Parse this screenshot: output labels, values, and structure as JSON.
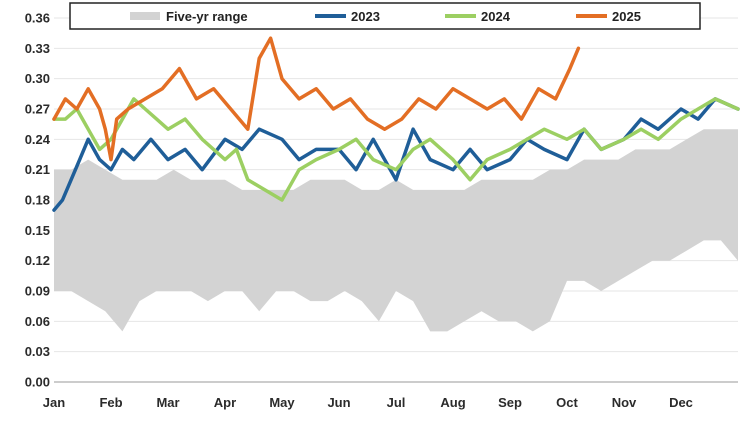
{
  "chart_data": {
    "type": "line",
    "title": "",
    "xlabel": "",
    "ylabel": "",
    "ylim": [
      0,
      0.36
    ],
    "yticks": [
      0.0,
      0.03,
      0.06,
      0.09,
      0.12,
      0.15,
      0.18,
      0.21,
      0.24,
      0.27,
      0.3,
      0.33,
      0.36
    ],
    "ytick_labels": [
      "0.00",
      "0.03",
      "0.06",
      "0.09",
      "0.12",
      "0.15",
      "0.18",
      "0.21",
      "0.24",
      "0.27",
      "0.30",
      "0.33",
      "0.36"
    ],
    "x_domain": [
      0,
      12
    ],
    "months": [
      "Jan",
      "Feb",
      "Mar",
      "Apr",
      "May",
      "Jun",
      "Jul",
      "Aug",
      "Sep",
      "Oct",
      "Nov",
      "Dec"
    ],
    "grid": true,
    "legend_position": "top",
    "range_band": {
      "name": "Five-yr range",
      "color": "#d3d3d3",
      "x": [
        0,
        0.3,
        0.6,
        0.9,
        1.2,
        1.5,
        1.8,
        2.1,
        2.4,
        2.7,
        3.0,
        3.3,
        3.6,
        3.9,
        4.2,
        4.5,
        4.8,
        5.1,
        5.4,
        5.7,
        6.0,
        6.3,
        6.6,
        6.9,
        7.2,
        7.5,
        7.8,
        8.1,
        8.4,
        8.7,
        9.0,
        9.3,
        9.6,
        9.9,
        10.2,
        10.5,
        10.8,
        11.1,
        11.4,
        11.7,
        12.0
      ],
      "lower": [
        0.09,
        0.09,
        0.08,
        0.07,
        0.05,
        0.08,
        0.09,
        0.09,
        0.09,
        0.08,
        0.09,
        0.09,
        0.07,
        0.09,
        0.09,
        0.08,
        0.08,
        0.09,
        0.08,
        0.06,
        0.09,
        0.08,
        0.05,
        0.05,
        0.06,
        0.07,
        0.06,
        0.06,
        0.05,
        0.06,
        0.1,
        0.1,
        0.09,
        0.1,
        0.11,
        0.12,
        0.12,
        0.13,
        0.14,
        0.14,
        0.12
      ],
      "upper": [
        0.21,
        0.21,
        0.22,
        0.21,
        0.2,
        0.2,
        0.2,
        0.21,
        0.2,
        0.2,
        0.2,
        0.19,
        0.19,
        0.19,
        0.19,
        0.2,
        0.2,
        0.2,
        0.19,
        0.19,
        0.2,
        0.19,
        0.19,
        0.19,
        0.19,
        0.2,
        0.2,
        0.2,
        0.2,
        0.21,
        0.21,
        0.22,
        0.22,
        0.22,
        0.23,
        0.23,
        0.23,
        0.24,
        0.25,
        0.25,
        0.25
      ]
    },
    "series": [
      {
        "name": "2023",
        "color": "#1f5e98",
        "x": [
          0,
          0.15,
          0.3,
          0.45,
          0.6,
          0.8,
          1.0,
          1.2,
          1.4,
          1.7,
          2.0,
          2.3,
          2.6,
          3.0,
          3.3,
          3.6,
          4.0,
          4.3,
          4.6,
          5.0,
          5.3,
          5.6,
          6.0,
          6.3,
          6.6,
          7.0,
          7.3,
          7.6,
          8.0,
          8.3,
          8.6,
          9.0,
          9.3,
          9.6,
          10.0,
          10.3,
          10.6,
          11.0,
          11.3,
          11.6,
          12.0
        ],
        "values": [
          0.17,
          0.18,
          0.2,
          0.22,
          0.24,
          0.22,
          0.21,
          0.23,
          0.22,
          0.24,
          0.22,
          0.23,
          0.21,
          0.24,
          0.23,
          0.25,
          0.24,
          0.22,
          0.23,
          0.23,
          0.21,
          0.24,
          0.2,
          0.25,
          0.22,
          0.21,
          0.23,
          0.21,
          0.22,
          0.24,
          0.23,
          0.22,
          0.25,
          0.23,
          0.24,
          0.26,
          0.25,
          0.27,
          0.26,
          0.28,
          0.27
        ]
      },
      {
        "name": "2024",
        "color": "#9ccf62",
        "x": [
          0,
          0.2,
          0.4,
          0.6,
          0.8,
          1.0,
          1.2,
          1.4,
          1.6,
          1.8,
          2.0,
          2.3,
          2.6,
          3.0,
          3.2,
          3.4,
          3.7,
          4.0,
          4.3,
          4.6,
          5.0,
          5.3,
          5.6,
          6.0,
          6.3,
          6.6,
          7.0,
          7.3,
          7.6,
          8.0,
          8.3,
          8.6,
          9.0,
          9.3,
          9.6,
          10.0,
          10.3,
          10.6,
          11.0,
          11.3,
          11.6,
          12.0
        ],
        "values": [
          0.26,
          0.26,
          0.27,
          0.25,
          0.23,
          0.24,
          0.26,
          0.28,
          0.27,
          0.26,
          0.25,
          0.26,
          0.24,
          0.22,
          0.23,
          0.2,
          0.19,
          0.18,
          0.21,
          0.22,
          0.23,
          0.24,
          0.22,
          0.21,
          0.23,
          0.24,
          0.22,
          0.2,
          0.22,
          0.23,
          0.24,
          0.25,
          0.24,
          0.25,
          0.23,
          0.24,
          0.25,
          0.24,
          0.26,
          0.27,
          0.28,
          0.27
        ]
      },
      {
        "name": "2025",
        "color": "#e36e24",
        "x": [
          0,
          0.2,
          0.4,
          0.6,
          0.8,
          0.9,
          1.0,
          1.1,
          1.3,
          1.6,
          1.9,
          2.2,
          2.5,
          2.8,
          3.1,
          3.4,
          3.6,
          3.8,
          4.0,
          4.3,
          4.6,
          4.9,
          5.2,
          5.5,
          5.8,
          6.1,
          6.4,
          6.7,
          7.0,
          7.3,
          7.6,
          7.9,
          8.2,
          8.5,
          8.8,
          9.05,
          9.2
        ],
        "values": [
          0.26,
          0.28,
          0.27,
          0.29,
          0.27,
          0.25,
          0.22,
          0.26,
          0.27,
          0.28,
          0.29,
          0.31,
          0.28,
          0.29,
          0.27,
          0.25,
          0.32,
          0.34,
          0.3,
          0.28,
          0.29,
          0.27,
          0.28,
          0.26,
          0.25,
          0.26,
          0.28,
          0.27,
          0.29,
          0.28,
          0.27,
          0.28,
          0.26,
          0.29,
          0.28,
          0.31,
          0.33
        ]
      }
    ]
  }
}
